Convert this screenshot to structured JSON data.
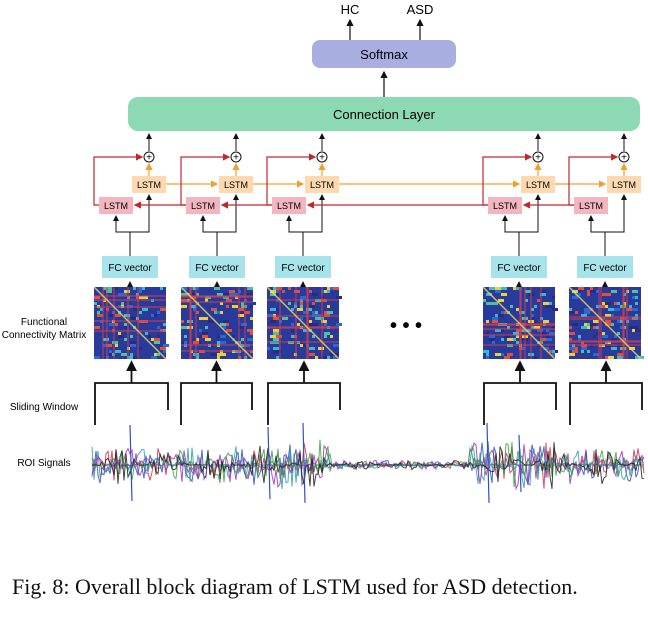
{
  "outputs": [
    "HC",
    "ASD"
  ],
  "softmax_label": "Softmax",
  "connection_layer_label": "Connection Layer",
  "plus_symbol": "+",
  "lstm_label": "LSTM",
  "fc_vector_label": "FC vector",
  "ellipsis": "• • •",
  "row_labels": {
    "fc_matrix_line1": "Functional",
    "fc_matrix_line2": "Connectivity Matrix",
    "sliding_window": "Sliding Window",
    "roi_signals": "ROI Signals"
  },
  "caption": "Fig. 8: Overall block diagram of LSTM used for ASD detection.",
  "colors": {
    "softmax": "#a9aee0",
    "connection_layer": "#8cd9b3",
    "lstm_forward": "#f3b6bf",
    "lstm_backward": "#fdd9b0",
    "fc_vector": "#a6e3ea",
    "arrow_red": "#c0282d",
    "arrow_orange": "#f0a030",
    "matrix_base": "#2a3a9a"
  }
}
